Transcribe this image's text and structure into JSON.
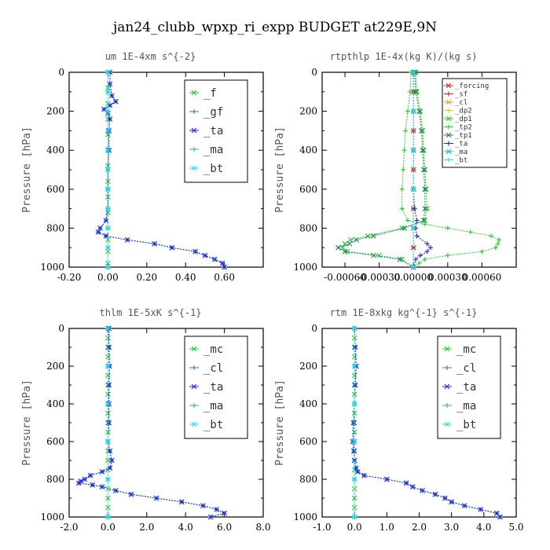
{
  "figure": {
    "title": "jan24_clubb_wpxp_ri_expp  BUDGET at229E,9N"
  },
  "colors": {
    "_f": "#22cc22",
    "_gf": "#1e7fe0",
    "_ta": "#2222cc",
    "_ma": "#2aa7e8",
    "_bt": "#1ee6ee",
    "_mc": "#22cc22",
    "_cl": "#1e7fe0",
    "_forcing": "#cc2222",
    "_sf": "#cc2222",
    "_cl_rt": "#f0a020",
    "_dp2": "#f0c020",
    "_dp1": "#22cc22",
    "_tp2": "#22cc22",
    "_tp1": "#208060",
    "_ta_rt": "#2222cc",
    "_ma_rt": "#2aa7e8",
    "_bt_rt": "#1ee6ee"
  },
  "chart_data": [
    {
      "type": "line",
      "title": "um   1E-4xm s^{-2}",
      "ylabel": "Pressure [hPa]",
      "xlim": [
        -0.2,
        0.8
      ],
      "ylim": [
        1000,
        0
      ],
      "xticks": [
        "-0.20",
        "0.00",
        "0.20",
        "0.40",
        "0.60"
      ],
      "yticks": [
        "0",
        "200",
        "400",
        "600",
        "800",
        "1000"
      ],
      "legend_position": "top-right",
      "legend_style": "large",
      "series": [
        {
          "name": "_f",
          "color_key": "_f",
          "pressure": [
            0,
            80,
            160,
            240,
            320,
            400,
            480,
            560,
            640,
            720,
            800,
            860,
            920,
            980,
            1000
          ],
          "values": [
            0,
            0,
            0,
            0,
            0,
            0,
            0,
            0,
            0,
            0,
            0,
            0,
            0,
            0,
            0
          ]
        },
        {
          "name": "_gf",
          "color_key": "_gf",
          "pressure": [
            0,
            60,
            120,
            150,
            170,
            190,
            210,
            240,
            300,
            400,
            500,
            600,
            700,
            760,
            800,
            820,
            840,
            860,
            880,
            900,
            920,
            940,
            960,
            980,
            1000
          ],
          "values": [
            0.01,
            0.01,
            0.02,
            0.04,
            0.01,
            -0.02,
            0.0,
            0.01,
            0.005,
            0.005,
            0.0,
            0.0,
            0.0,
            -0.01,
            -0.04,
            -0.05,
            -0.01,
            0.1,
            0.24,
            0.33,
            0.45,
            0.5,
            0.55,
            0.59,
            0.6
          ]
        },
        {
          "name": "_ta",
          "color_key": "_ta",
          "pressure": [
            0,
            60,
            120,
            150,
            170,
            190,
            210,
            240,
            300,
            400,
            500,
            600,
            700,
            760,
            800,
            820,
            840,
            860,
            880,
            900,
            920,
            940,
            960,
            980,
            1000
          ],
          "values": [
            0.01,
            0.01,
            0.02,
            0.04,
            0.01,
            -0.02,
            0.0,
            0.01,
            0.005,
            0.005,
            0.0,
            0.0,
            0.0,
            -0.01,
            -0.04,
            -0.05,
            -0.01,
            0.1,
            0.24,
            0.33,
            0.45,
            0.5,
            0.55,
            0.59,
            0.6
          ]
        },
        {
          "name": "_ma",
          "color_key": "_ma",
          "pressure": [
            0,
            100,
            200,
            300,
            400,
            500,
            600,
            700,
            800,
            900,
            1000
          ],
          "values": [
            0,
            0,
            0,
            0,
            0,
            0,
            0,
            0,
            0,
            0,
            0
          ]
        },
        {
          "name": "_bt",
          "color_key": "_bt",
          "pressure": [
            0,
            100,
            200,
            300,
            400,
            500,
            600,
            700,
            800,
            900,
            1000
          ],
          "values": [
            0,
            0,
            0,
            0,
            0,
            0,
            0,
            0,
            0,
            0,
            0
          ]
        }
      ]
    },
    {
      "type": "line",
      "title": "rtpthlp   1E-4x(kg K)/(kg s)",
      "ylabel": "Pressure [hPa]",
      "xlim": [
        -0.0008,
        0.0009
      ],
      "ylim": [
        1000,
        0
      ],
      "xticks": [
        "-0.00060",
        "-0.00030",
        "0.00000",
        "0.00030",
        "0.00060"
      ],
      "yticks": [
        "0",
        "200",
        "400",
        "600",
        "800",
        "1000"
      ],
      "legend_position": "top-right",
      "legend_style": "small",
      "series": [
        {
          "name": "_forcing",
          "color_key": "_forcing",
          "pressure": [
            0,
            100,
            200,
            300,
            400,
            500,
            600,
            700,
            800,
            900,
            1000
          ],
          "values": [
            0,
            0,
            0,
            0,
            0,
            0,
            0,
            0,
            0,
            0,
            0
          ]
        },
        {
          "name": "_sf",
          "color_key": "_sf",
          "pressure": [
            0,
            100,
            200,
            300,
            400,
            500,
            600,
            700,
            800,
            900,
            1000
          ],
          "values": [
            0,
            0,
            0,
            0,
            0,
            0,
            0,
            0,
            0,
            0,
            0
          ]
        },
        {
          "name": "_cl",
          "color_key": "_cl_rt",
          "pressure": [
            0,
            200,
            400,
            600,
            800,
            1000
          ],
          "values": [
            0,
            0,
            0,
            0,
            0,
            0
          ]
        },
        {
          "name": "_dp2",
          "color_key": "_dp2",
          "pressure": [
            0,
            200,
            400,
            600,
            800,
            1000
          ],
          "values": [
            0,
            0,
            0,
            0,
            0,
            0
          ]
        },
        {
          "name": "_dp1",
          "color_key": "_dp1",
          "pressure": [
            0,
            100,
            200,
            300,
            400,
            500,
            600,
            700,
            760,
            800,
            840,
            860,
            880,
            900,
            920,
            940,
            960,
            1000
          ],
          "values": [
            2e-05,
            3e-05,
            6e-05,
            8e-05,
            9e-05,
            0.0001,
            0.00011,
            0.00012,
            0.0001,
            -0.0001,
            -0.0004,
            -0.00055,
            -0.0006,
            -0.00062,
            -0.00058,
            -0.0003,
            -0.0001,
            0.0
          ]
        },
        {
          "name": "_tp2",
          "color_key": "_tp2",
          "pressure": [
            0,
            100,
            200,
            300,
            400,
            500,
            600,
            700,
            760,
            780,
            800,
            820,
            840,
            860,
            880,
            900,
            920,
            940,
            960,
            980,
            1000
          ],
          "values": [
            -2e-05,
            -3e-05,
            -5e-05,
            -7e-05,
            -8e-05,
            -9e-05,
            -0.0001,
            -0.0001,
            -5e-05,
            0.0001,
            0.0003,
            0.0005,
            0.00068,
            0.00075,
            0.00074,
            0.00072,
            0.0006,
            0.0003,
            0.0001,
            5e-05,
            0.0
          ]
        },
        {
          "name": "_tp1",
          "color_key": "_tp1",
          "pressure": [
            0,
            100,
            200,
            300,
            400,
            500,
            600,
            700,
            760,
            800,
            840,
            860,
            880,
            900,
            920,
            940,
            960,
            1000
          ],
          "values": [
            1e-05,
            2e-05,
            5e-05,
            7e-05,
            8e-05,
            9e-05,
            0.0001,
            0.0001,
            9e-05,
            -8e-05,
            -0.00035,
            -0.0005,
            -0.00056,
            -0.00066,
            -0.0006,
            -0.00035,
            -0.00012,
            0.0
          ]
        },
        {
          "name": "_ta",
          "color_key": "_ta_rt",
          "pressure": [
            0,
            200,
            400,
            600,
            700,
            760,
            800,
            840,
            880,
            900,
            920,
            940,
            960,
            1000
          ],
          "values": [
            0,
            0,
            0,
            0,
            1e-05,
            3e-05,
            2e-05,
            3e-05,
            0.00012,
            0.00015,
            0.00012,
            6e-05,
            2e-05,
            0.0
          ]
        },
        {
          "name": "_ma",
          "color_key": "_ma_rt",
          "pressure": [
            0,
            200,
            400,
            600,
            800,
            1000
          ],
          "values": [
            0,
            0,
            0,
            0,
            0,
            0
          ]
        },
        {
          "name": "_bt",
          "color_key": "_bt_rt",
          "pressure": [
            0,
            200,
            400,
            600,
            800,
            1000
          ],
          "values": [
            0,
            0,
            0,
            0,
            0,
            0
          ]
        }
      ]
    },
    {
      "type": "line",
      "title": "thlm   1E-5xK s^{-1}",
      "ylabel": "Pressure [hPa]",
      "xlim": [
        -2.0,
        8.0
      ],
      "ylim": [
        1000,
        0
      ],
      "xticks": [
        "-2.0",
        "0.0",
        "2.0",
        "4.0",
        "6.0",
        "8.0"
      ],
      "yticks": [
        "0",
        "200",
        "400",
        "600",
        "800",
        "1000"
      ],
      "legend_position": "top-right",
      "legend_style": "large",
      "series": [
        {
          "name": "_mc",
          "color_key": "_mc",
          "pressure": [
            0,
            50,
            100,
            150,
            200,
            250,
            300,
            350,
            400,
            450,
            500,
            550,
            600,
            650,
            700,
            750,
            800,
            850,
            900,
            950,
            1000
          ],
          "values": [
            0,
            0,
            0,
            0,
            0,
            0,
            0,
            0,
            0,
            0,
            0,
            0,
            0,
            0,
            0,
            0,
            0,
            0,
            0,
            0,
            0
          ]
        },
        {
          "name": "_cl",
          "color_key": "_cl",
          "pressure": [
            0,
            100,
            200,
            300,
            400,
            500,
            600,
            650,
            700,
            740,
            760,
            780,
            800,
            810,
            820,
            830,
            840,
            860,
            880,
            900,
            920,
            940,
            960,
            980,
            1000
          ],
          "values": [
            0.05,
            0.05,
            0.08,
            0.05,
            0.05,
            0.05,
            0.0,
            0.1,
            0.2,
            0.1,
            -0.3,
            -0.9,
            -1.2,
            -1.4,
            -1.5,
            -0.8,
            -0.3,
            0.4,
            1.2,
            2.5,
            3.8,
            4.9,
            5.6,
            6.0,
            5.3
          ]
        },
        {
          "name": "_ta",
          "color_key": "_ta",
          "pressure": [
            0,
            100,
            200,
            300,
            400,
            500,
            600,
            650,
            700,
            740,
            760,
            780,
            800,
            810,
            820,
            830,
            840,
            860,
            880,
            900,
            920,
            940,
            960,
            980,
            1000
          ],
          "values": [
            0.05,
            0.05,
            0.08,
            0.05,
            0.05,
            0.05,
            0.0,
            0.1,
            0.2,
            0.1,
            -0.3,
            -0.9,
            -1.2,
            -1.4,
            -1.5,
            -0.8,
            -0.3,
            0.4,
            1.2,
            2.5,
            3.8,
            4.9,
            5.6,
            6.0,
            5.3
          ]
        },
        {
          "name": "_ma",
          "color_key": "_ma",
          "pressure": [
            0,
            200,
            400,
            600,
            800,
            1000
          ],
          "values": [
            0,
            0,
            0,
            0,
            0,
            0
          ]
        },
        {
          "name": "_bt",
          "color_key": "_bt",
          "pressure": [
            0,
            200,
            400,
            600,
            800,
            1000
          ],
          "values": [
            0,
            0,
            0,
            0,
            0,
            0
          ]
        }
      ]
    },
    {
      "type": "line",
      "title": "rtm   1E-8xkg kg^{-1} s^{-1}",
      "ylabel": "Pressure [hPa]",
      "xlim": [
        -1.0,
        5.0
      ],
      "ylim": [
        1000,
        0
      ],
      "xticks": [
        "-1.0",
        "0.0",
        "1.0",
        "2.0",
        "3.0",
        "4.0",
        "5.0"
      ],
      "yticks": [
        "0",
        "200",
        "400",
        "600",
        "800",
        "1000"
      ],
      "legend_position": "top-right",
      "legend_style": "large",
      "series": [
        {
          "name": "_mc",
          "color_key": "_mc",
          "pressure": [
            0,
            50,
            100,
            150,
            200,
            250,
            300,
            350,
            400,
            450,
            500,
            550,
            600,
            650,
            700,
            750,
            800,
            850,
            900,
            950,
            1000
          ],
          "values": [
            0,
            0,
            0,
            0,
            0,
            0,
            0,
            0,
            0,
            0,
            0,
            0,
            0,
            0,
            0,
            0,
            0,
            0,
            0,
            0,
            0
          ]
        },
        {
          "name": "_cl",
          "color_key": "_cl",
          "pressure": [
            0,
            100,
            200,
            300,
            400,
            500,
            600,
            650,
            700,
            740,
            760,
            780,
            800,
            820,
            840,
            860,
            880,
            900,
            920,
            940,
            960,
            980,
            1000
          ],
          "values": [
            0.0,
            0.02,
            0.05,
            0.02,
            0.0,
            -0.03,
            -0.05,
            -0.02,
            0.0,
            0.05,
            0.1,
            0.3,
            1.0,
            1.6,
            1.8,
            2.1,
            2.5,
            2.8,
            3.0,
            3.4,
            3.9,
            4.4,
            4.5
          ]
        },
        {
          "name": "_ta",
          "color_key": "_ta",
          "pressure": [
            0,
            100,
            200,
            300,
            400,
            500,
            600,
            650,
            700,
            740,
            760,
            780,
            800,
            820,
            840,
            860,
            880,
            900,
            920,
            940,
            960,
            980,
            1000
          ],
          "values": [
            0.0,
            0.02,
            0.05,
            0.02,
            0.0,
            -0.03,
            -0.05,
            -0.02,
            0.0,
            0.05,
            0.1,
            0.3,
            1.0,
            1.6,
            1.8,
            2.1,
            2.5,
            2.8,
            3.0,
            3.4,
            3.9,
            4.4,
            4.5
          ]
        },
        {
          "name": "_ma",
          "color_key": "_ma",
          "pressure": [
            0,
            200,
            400,
            600,
            800,
            1000
          ],
          "values": [
            0,
            0,
            0,
            0,
            0,
            0
          ]
        },
        {
          "name": "_bt",
          "color_key": "_bt",
          "pressure": [
            0,
            200,
            400,
            600,
            800,
            1000
          ],
          "values": [
            0,
            0,
            0,
            0,
            0,
            0
          ]
        }
      ]
    }
  ]
}
